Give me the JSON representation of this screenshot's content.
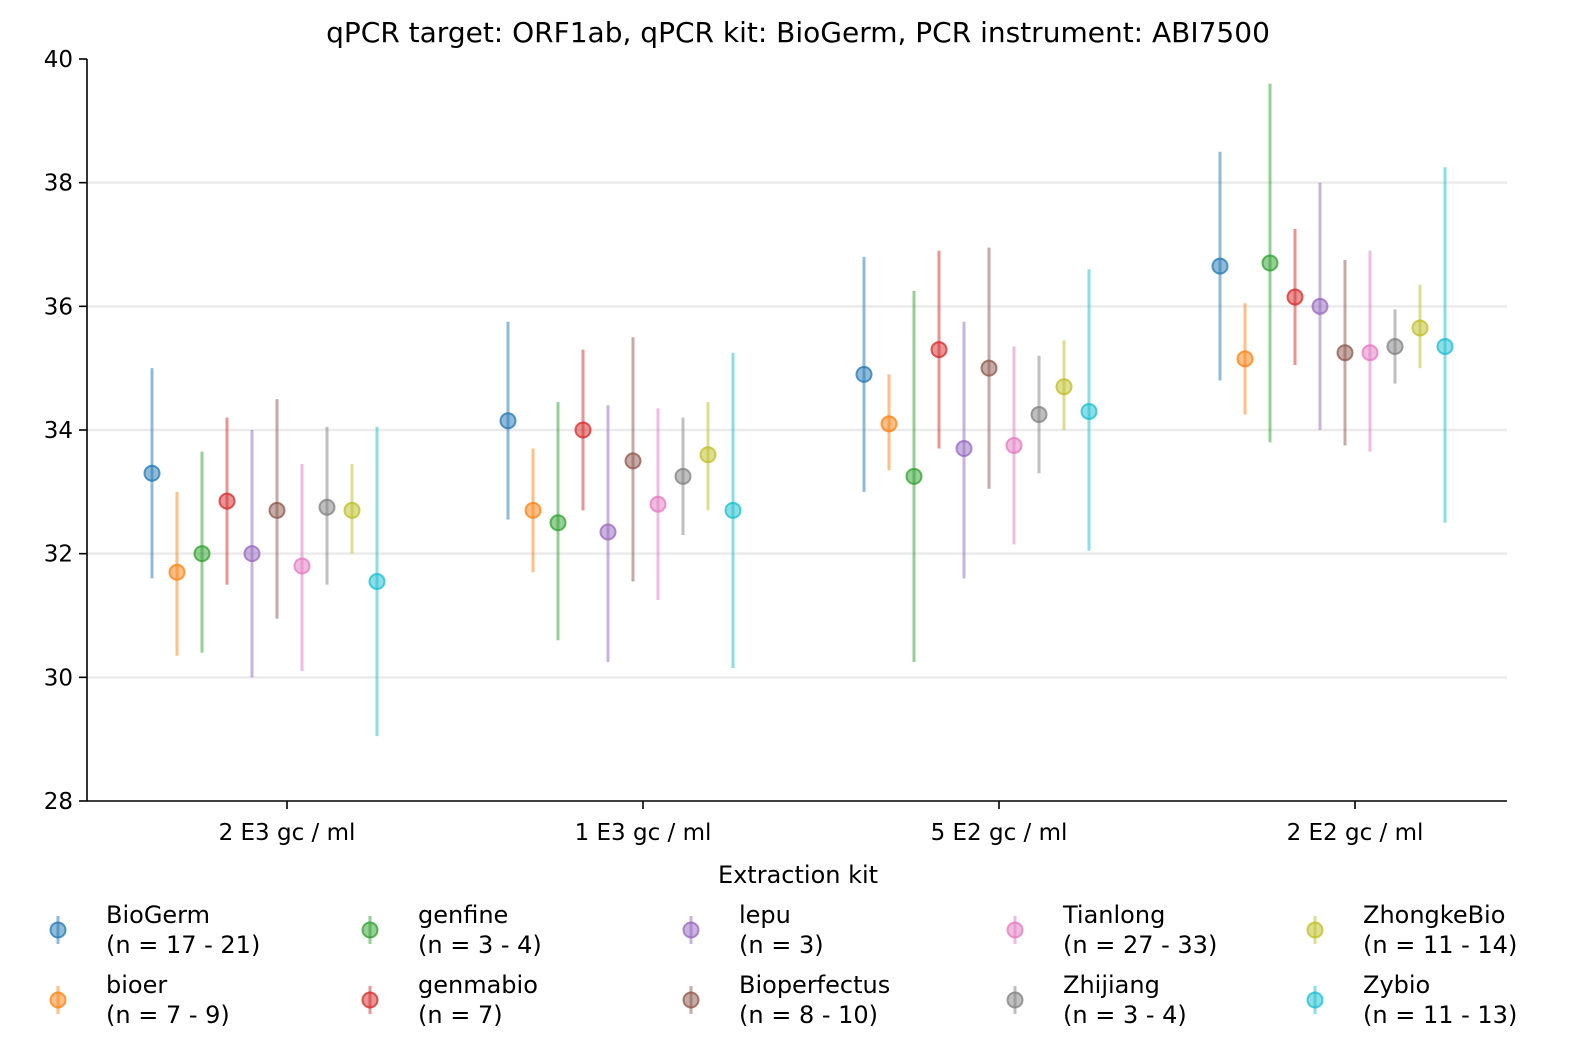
{
  "chart_data": {
    "type": "scatter",
    "title": "qPCR target: ORF1ab, qPCR kit: BioGerm, PCR instrument: ABI7500",
    "xlabel": "Extraction kit",
    "ylabel": "",
    "ylim": [
      28,
      40
    ],
    "yticks": [
      "28",
      "30",
      "32",
      "34",
      "36",
      "38",
      "40"
    ],
    "grid": "horizontal",
    "legend_position": "bottom",
    "categories": [
      "2 E3 gc / ml",
      "1 E3 gc / ml",
      "5 E2 gc / ml",
      "2 E2 gc / ml"
    ],
    "series": [
      {
        "name": "BioGerm",
        "n_label": "(n = 17 - 21)",
        "color": "#1f77b4",
        "values": [
          33.3,
          34.15,
          34.9,
          36.65
        ],
        "lower": [
          31.6,
          32.55,
          33.0,
          34.8
        ],
        "upper": [
          35.0,
          35.75,
          36.8,
          38.5
        ]
      },
      {
        "name": "bioer",
        "n_label": "(n = 7 - 9)",
        "color": "#ff7f0e",
        "values": [
          31.7,
          32.7,
          34.1,
          35.15
        ],
        "lower": [
          30.35,
          31.7,
          33.35,
          34.25
        ],
        "upper": [
          33.0,
          33.7,
          34.9,
          36.05
        ]
      },
      {
        "name": "genfine",
        "n_label": "(n = 3 - 4)",
        "color": "#2ca02c",
        "values": [
          32.0,
          32.5,
          33.25,
          36.7
        ],
        "lower": [
          30.4,
          30.6,
          30.25,
          33.8
        ],
        "upper": [
          33.65,
          34.45,
          36.25,
          39.6
        ]
      },
      {
        "name": "genmabio",
        "n_label": "(n = 7)",
        "color": "#d62728",
        "values": [
          32.85,
          34.0,
          35.3,
          36.15
        ],
        "lower": [
          31.5,
          32.7,
          33.7,
          35.05
        ],
        "upper": [
          34.2,
          35.3,
          36.9,
          37.25
        ]
      },
      {
        "name": "lepu",
        "n_label": "(n = 3)",
        "color": "#9467bd",
        "values": [
          32.0,
          32.35,
          33.7,
          36.0
        ],
        "lower": [
          30.0,
          30.25,
          31.6,
          34.0
        ],
        "upper": [
          34.0,
          34.4,
          35.75,
          38.0
        ]
      },
      {
        "name": "Bioperfectus",
        "n_label": "(n = 8 - 10)",
        "color": "#8c564b",
        "values": [
          32.7,
          33.5,
          35.0,
          35.25
        ],
        "lower": [
          30.95,
          31.55,
          33.05,
          33.75
        ],
        "upper": [
          34.5,
          35.5,
          36.95,
          36.75
        ]
      },
      {
        "name": "Tianlong",
        "n_label": "(n = 27 - 33)",
        "color": "#e377c2",
        "values": [
          31.8,
          32.8,
          33.75,
          35.25
        ],
        "lower": [
          30.1,
          31.25,
          32.15,
          33.65
        ],
        "upper": [
          33.45,
          34.35,
          35.35,
          36.9
        ]
      },
      {
        "name": "Zhijiang",
        "n_label": "(n = 3 - 4)",
        "color": "#7f7f7f",
        "values": [
          32.75,
          33.25,
          34.25,
          35.35
        ],
        "lower": [
          31.5,
          32.3,
          33.3,
          34.75
        ],
        "upper": [
          34.05,
          34.2,
          35.2,
          35.95
        ]
      },
      {
        "name": "ZhongkeBio",
        "n_label": "(n = 11 - 14)",
        "color": "#bcbd22",
        "values": [
          32.7,
          33.6,
          34.7,
          35.65
        ],
        "lower": [
          32.0,
          32.7,
          34.0,
          35.0
        ],
        "upper": [
          33.45,
          34.45,
          35.45,
          36.35
        ]
      },
      {
        "name": "Zybio",
        "n_label": "(n = 11 - 13)",
        "color": "#17becf",
        "values": [
          31.55,
          32.7,
          34.3,
          35.35
        ],
        "lower": [
          29.05,
          30.15,
          32.05,
          32.5
        ],
        "upper": [
          34.05,
          35.25,
          36.6,
          38.25
        ]
      }
    ]
  }
}
